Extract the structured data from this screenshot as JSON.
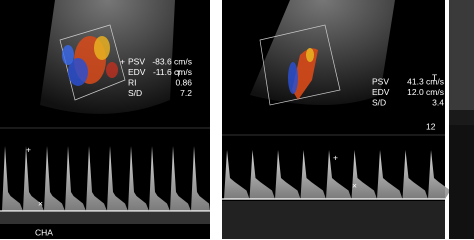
{
  "panels": [
    {
      "measurements": [
        {
          "label": "PSV",
          "value": "-83.6 cm/s"
        },
        {
          "label": "EDV",
          "value": "-11.6 cm/s"
        },
        {
          "label": "RI",
          "value": "0.86"
        },
        {
          "label": "S/D",
          "value": "7.2"
        }
      ],
      "vessel_label": "CHA"
    },
    {
      "measurements": [
        {
          "label": "PSV",
          "value": "41.3 cm/s"
        },
        {
          "label": "EDV",
          "value": "12.0 cm/s"
        },
        {
          "label": "S/D",
          "value": "3.4"
        }
      ],
      "depth": "12"
    }
  ]
}
